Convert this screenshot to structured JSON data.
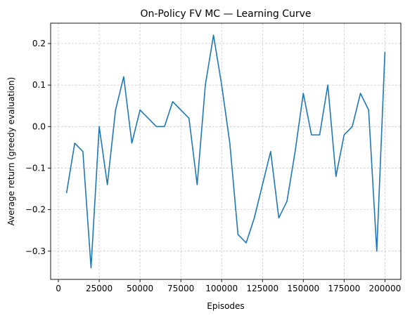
{
  "chart_data": {
    "type": "line",
    "title": "On-Policy FV MC — Learning Curve",
    "xlabel": "Episodes",
    "ylabel": "Average return (greedy evaluation)",
    "xlim": [
      -4750,
      209750
    ],
    "ylim": [
      -0.368,
      0.249
    ],
    "xticks": [
      0,
      25000,
      50000,
      75000,
      100000,
      125000,
      150000,
      175000,
      200000
    ],
    "xtick_labels": [
      "0",
      "25000",
      "50000",
      "75000",
      "100000",
      "125000",
      "150000",
      "175000",
      "200000"
    ],
    "yticks": [
      -0.3,
      -0.2,
      -0.1,
      0.0,
      0.1,
      0.2
    ],
    "ytick_labels": [
      "−0.3",
      "−0.2",
      "−0.1",
      "0.0",
      "0.1",
      "0.2"
    ],
    "grid": true,
    "series": [
      {
        "color": "#1f77b4",
        "x": [
          5000,
          10000,
          15000,
          20000,
          25000,
          30000,
          35000,
          40000,
          45000,
          50000,
          55000,
          60000,
          65000,
          70000,
          75000,
          80000,
          85000,
          90000,
          95000,
          100000,
          105000,
          110000,
          115000,
          120000,
          125000,
          130000,
          135000,
          140000,
          145000,
          150000,
          155000,
          160000,
          165000,
          170000,
          175000,
          180000,
          185000,
          190000,
          195000,
          200000
        ],
        "values": [
          -0.16,
          -0.04,
          -0.06,
          -0.34,
          0.0,
          -0.14,
          0.04,
          0.12,
          -0.04,
          0.04,
          0.02,
          0.0,
          0.0,
          0.06,
          0.04,
          0.02,
          -0.14,
          0.1,
          0.22,
          0.1,
          -0.04,
          -0.26,
          -0.28,
          -0.22,
          -0.14,
          -0.06,
          -0.22,
          -0.18,
          -0.06,
          0.08,
          -0.02,
          -0.02,
          0.1,
          -0.12,
          -0.02,
          0.0,
          0.08,
          0.04,
          -0.3,
          0.18
        ]
      }
    ]
  }
}
